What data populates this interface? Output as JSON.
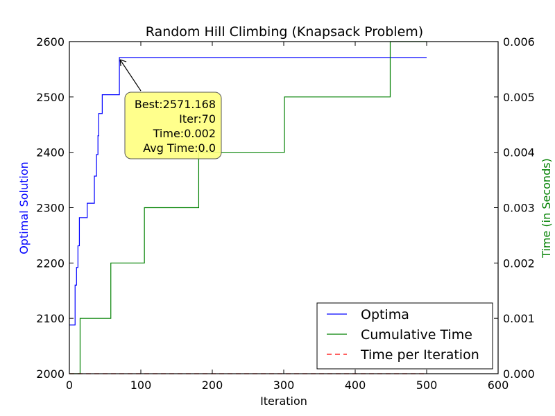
{
  "chart_data": {
    "type": "line",
    "title": "Random Hill Climbing (Knapsack Problem)",
    "xlabel": "Iteration",
    "ylabel_left": "Optimal Solution",
    "ylabel_right": "Time (in Seconds)",
    "xlim": [
      0,
      600
    ],
    "ylim_left": [
      2000,
      2600
    ],
    "ylim_right": [
      0.0,
      0.006
    ],
    "x_ticks": [
      "0",
      "100",
      "200",
      "300",
      "400",
      "500",
      "600"
    ],
    "y_left_ticks": [
      "2000",
      "2100",
      "2200",
      "2300",
      "2400",
      "2500",
      "2600"
    ],
    "y_right_ticks": [
      "0.000",
      "0.001",
      "0.002",
      "0.003",
      "0.004",
      "0.005",
      "0.006"
    ],
    "grid": false,
    "legend_position": "lower-right",
    "series": [
      {
        "name": "Optima",
        "axis": "left",
        "color": "#0000ff",
        "style": "step",
        "x": [
          0,
          7,
          8,
          9,
          10,
          12,
          14,
          16,
          23,
          25,
          33,
          35,
          37,
          38,
          40,
          41,
          44,
          46,
          69,
          70,
          500
        ],
        "y": [
          2088,
          2088,
          2160,
          2160,
          2192,
          2231,
          2282,
          2282,
          2282,
          2308,
          2308,
          2357,
          2357,
          2396,
          2430,
          2470,
          2470,
          2504,
          2504,
          2571.168,
          2571.168
        ]
      },
      {
        "name": "Cumulative Time",
        "axis": "right",
        "color": "#008000",
        "style": "step",
        "x": [
          0,
          14,
          15,
          57,
          58,
          104,
          105,
          180,
          181,
          300,
          301,
          448,
          449,
          500
        ],
        "y": [
          0.0,
          0.0,
          0.001,
          0.001,
          0.002,
          0.002,
          0.003,
          0.003,
          0.004,
          0.004,
          0.005,
          0.005,
          0.006,
          0.006
        ]
      },
      {
        "name": "Time per Iteration",
        "axis": "right",
        "color": "#ff0000",
        "style": "dashed",
        "x": [
          0,
          500
        ],
        "y": [
          0.0,
          0.0
        ]
      }
    ],
    "annotation": {
      "point": {
        "x": 70,
        "y": 2571.168
      },
      "lines": [
        "Best:2571.168",
        "Iter:70",
        "Time:0.002",
        "Avg Time:0.0"
      ],
      "box_color": "#ffff80"
    }
  }
}
